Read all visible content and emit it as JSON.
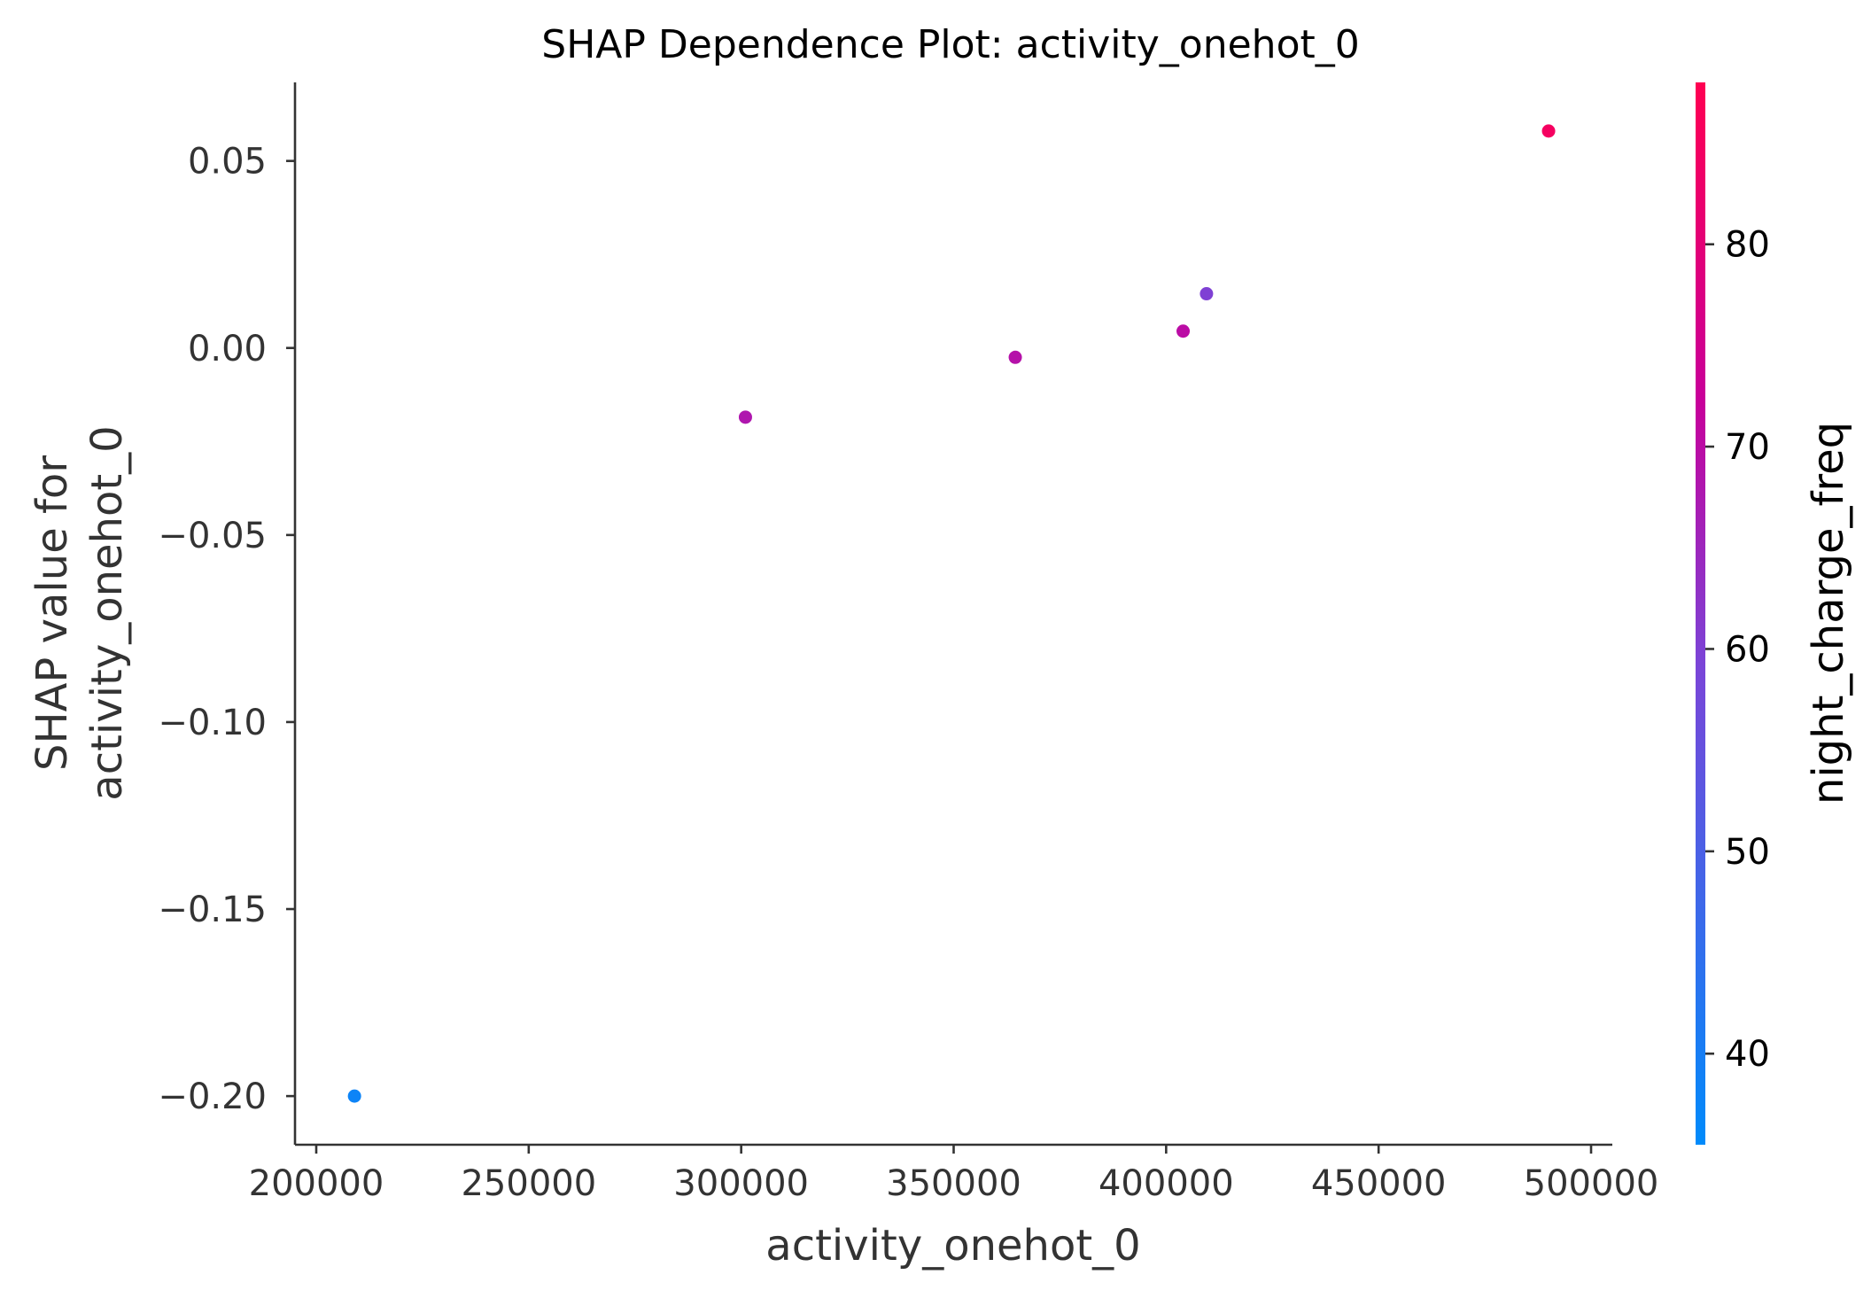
{
  "chart_data": {
    "type": "scatter",
    "title": "SHAP Dependence Plot: activity_onehot_0",
    "xlabel": "activity_onehot_0",
    "ylabel_lines": [
      "SHAP value for",
      "activity_onehot_0"
    ],
    "xlim": [
      195000,
      505000
    ],
    "ylim": [
      -0.213,
      0.071
    ],
    "xticks": [
      200000,
      250000,
      300000,
      350000,
      400000,
      450000,
      500000
    ],
    "xtick_labels": [
      "200000",
      "250000",
      "300000",
      "350000",
      "400000",
      "450000",
      "500000"
    ],
    "yticks": [
      0.05,
      0.0,
      -0.05,
      -0.1,
      -0.15,
      -0.2
    ],
    "ytick_labels": [
      "0.05",
      "0.00",
      "−0.05",
      "−0.10",
      "−0.15",
      "−0.20"
    ],
    "points": [
      {
        "x": 209000,
        "y": -0.2,
        "c": 38
      },
      {
        "x": 301000,
        "y": -0.0185,
        "c": 68
      },
      {
        "x": 364500,
        "y": -0.0025,
        "c": 69
      },
      {
        "x": 404000,
        "y": 0.0045,
        "c": 70
      },
      {
        "x": 409500,
        "y": 0.0145,
        "c": 60
      },
      {
        "x": 490000,
        "y": 0.058,
        "c": 85
      }
    ],
    "colorbar": {
      "label": "night_charge_freq",
      "range": [
        35.5,
        88
      ],
      "ticks": [
        40,
        50,
        60,
        70,
        80
      ],
      "tick_labels": [
        "40",
        "50",
        "60",
        "70",
        "80"
      ],
      "colormap": [
        "#008bfb",
        "#ff0052"
      ]
    },
    "grid": false,
    "legend": "none"
  }
}
